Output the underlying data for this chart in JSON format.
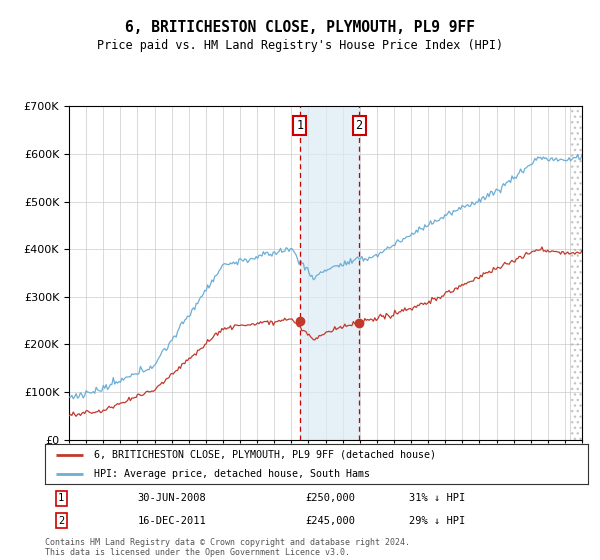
{
  "title": "6, BRITICHESTON CLOSE, PLYMOUTH, PL9 9FF",
  "subtitle": "Price paid vs. HM Land Registry's House Price Index (HPI)",
  "legend_line1": "6, BRITICHESTON CLOSE, PLYMOUTH, PL9 9FF (detached house)",
  "legend_line2": "HPI: Average price, detached house, South Hams",
  "footer": "Contains HM Land Registry data © Crown copyright and database right 2024.\nThis data is licensed under the Open Government Licence v3.0.",
  "sale1_date": "30-JUN-2008",
  "sale1_price": "£250,000",
  "sale1_hpi": "31% ↓ HPI",
  "sale2_date": "16-DEC-2011",
  "sale2_price": "£245,000",
  "sale2_hpi": "29% ↓ HPI",
  "sale1_year": 2008.5,
  "sale2_year": 2011.96,
  "sale1_value": 250000,
  "sale2_value": 245000,
  "hpi_color": "#6baed6",
  "price_color": "#c0392b",
  "background_color": "#ffffff",
  "grid_color": "#cccccc",
  "shade_color": "#daeaf5",
  "marker_box_color": "#cc0000",
  "ylim_min": 0,
  "ylim_max": 700000,
  "xmin": 1995,
  "xmax": 2025
}
